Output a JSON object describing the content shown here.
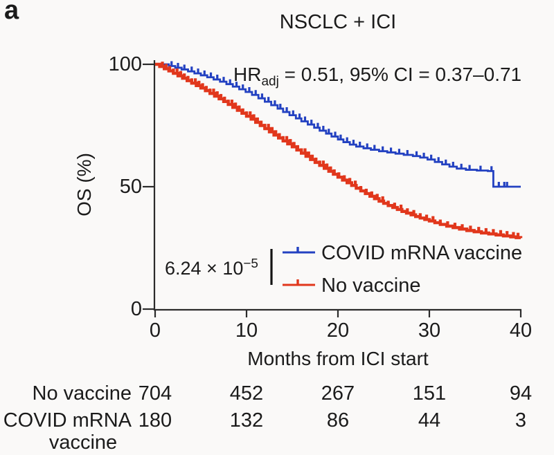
{
  "panel_label": "a",
  "annotations": {
    "hr_prefix": "HR",
    "hr_sub": "adj",
    "hr_rest": " = 0.51, 95% CI = 0.37–0.71",
    "pvalue_base": "6.24 × 10",
    "pvalue_sup": "−5"
  },
  "risk_table": {
    "rows": [
      {
        "label": "No vaccine",
        "counts": [
          "704",
          "452",
          "267",
          "151",
          "94"
        ]
      },
      {
        "label_line1": "COVID mRNA",
        "label_line2": "vaccine",
        "counts": [
          "180",
          "132",
          "86",
          "44",
          "3"
        ]
      }
    ]
  },
  "chart_data": {
    "type": "line",
    "subtype": "kaplan-meier-step",
    "title": "NSCLC + ICI",
    "xlabel": "Months from ICI start",
    "ylabel": "OS (%)",
    "xlim": [
      0,
      40
    ],
    "ylim": [
      0,
      100
    ],
    "grid": false,
    "legend_position": "inside lower-center",
    "x_ticks": [
      0,
      10,
      20,
      30,
      40
    ],
    "y_ticks": [
      100,
      50,
      0
    ],
    "x_tick_labels": [
      "0",
      "10",
      "20",
      "30",
      "40"
    ],
    "y_tick_labels": [
      "100",
      "50",
      "0"
    ],
    "hr_adjusted": 0.51,
    "ci_95": [
      0.37,
      0.71
    ],
    "p_value": 6.24e-05,
    "series": [
      {
        "name": "COVID mRNA vaccine",
        "color": "#2341c1",
        "line_width": 2.8,
        "censor_width": 3.2,
        "censor_height": 7,
        "steps": [
          [
            0,
            100
          ],
          [
            1.5,
            99.3
          ],
          [
            2.2,
            98.6
          ],
          [
            2.9,
            97.9
          ],
          [
            3.6,
            97.1
          ],
          [
            4.3,
            96.3
          ],
          [
            5,
            95.5
          ],
          [
            5.7,
            94.7
          ],
          [
            6.4,
            93.8
          ],
          [
            7.1,
            92.9
          ],
          [
            7.8,
            91.9
          ],
          [
            8.5,
            90.9
          ],
          [
            9.2,
            89.8
          ],
          [
            9.9,
            88.7
          ],
          [
            10.6,
            87.5
          ],
          [
            11.3,
            86.1
          ],
          [
            12,
            84.7
          ],
          [
            12.7,
            83.3
          ],
          [
            13.4,
            81.9
          ],
          [
            14,
            80.5
          ],
          [
            14.7,
            79.2
          ],
          [
            15.4,
            77.9
          ],
          [
            16,
            76.7
          ],
          [
            16.7,
            75.4
          ],
          [
            17.4,
            74.1
          ],
          [
            18,
            72.9
          ],
          [
            18.7,
            71.7
          ],
          [
            19.3,
            70.5
          ],
          [
            20,
            69.3
          ],
          [
            20.6,
            68.2
          ],
          [
            21.3,
            67.2
          ],
          [
            22,
            66.4
          ],
          [
            22.8,
            65.7
          ],
          [
            23.6,
            65.1
          ],
          [
            24.5,
            64.5
          ],
          [
            25.4,
            64
          ],
          [
            26.3,
            63.5
          ],
          [
            27.2,
            63
          ],
          [
            28.2,
            62.5
          ],
          [
            29,
            61.9
          ],
          [
            29.8,
            61.1
          ],
          [
            30.6,
            60.1
          ],
          [
            31.4,
            59.1
          ],
          [
            32.2,
            58.2
          ],
          [
            33,
            57.4
          ],
          [
            34,
            56.9
          ],
          [
            35.2,
            56.6
          ],
          [
            36.4,
            56.4
          ],
          [
            37,
            50
          ],
          [
            40,
            50
          ]
        ],
        "censor_times": [
          1.8,
          2.5,
          3.2,
          4,
          4.7,
          5.4,
          6.1,
          6.8,
          7.5,
          8.2,
          8.9,
          9.6,
          10.3,
          11,
          11.7,
          12.4,
          13.1,
          13.7,
          14.4,
          15.1,
          15.8,
          16.4,
          17.1,
          17.8,
          18.4,
          19,
          19.7,
          20.3,
          21,
          21.7,
          22.4,
          23.2,
          24,
          24.9,
          25.8,
          26.7,
          27.6,
          28.6,
          29.4,
          30.2,
          31,
          31.8,
          32.6,
          33.5,
          34.4,
          35.6,
          36.8,
          37.6,
          38.2,
          38.5
        ],
        "at_risk": [
          180,
          132,
          86,
          44,
          3
        ]
      },
      {
        "name": "No vaccine",
        "color": "#e1371c",
        "line_width": 4.4,
        "censor_width": 4.2,
        "censor_height": 7,
        "steps": [
          [
            0,
            100
          ],
          [
            0.5,
            99.1
          ],
          [
            1,
            98.2
          ],
          [
            1.5,
            97.3
          ],
          [
            2,
            96.3
          ],
          [
            2.5,
            95.3
          ],
          [
            3,
            94.3
          ],
          [
            3.5,
            93.3
          ],
          [
            4,
            92.3
          ],
          [
            4.5,
            91.3
          ],
          [
            5,
            90.3
          ],
          [
            5.5,
            89.2
          ],
          [
            6,
            88.1
          ],
          [
            6.5,
            87
          ],
          [
            7,
            85.9
          ],
          [
            7.5,
            84.8
          ],
          [
            8,
            83.6
          ],
          [
            8.5,
            82.4
          ],
          [
            9,
            81.2
          ],
          [
            9.5,
            80
          ],
          [
            10,
            78.8
          ],
          [
            10.5,
            77.6
          ],
          [
            11,
            76.3
          ],
          [
            11.5,
            75
          ],
          [
            12,
            73.7
          ],
          [
            12.5,
            72.4
          ],
          [
            13,
            71.1
          ],
          [
            13.5,
            69.9
          ],
          [
            14,
            68.7
          ],
          [
            14.5,
            67.5
          ],
          [
            15,
            66.3
          ],
          [
            15.5,
            65
          ],
          [
            16,
            63.7
          ],
          [
            16.5,
            62.4
          ],
          [
            17,
            61.1
          ],
          [
            17.5,
            59.9
          ],
          [
            18,
            58.7
          ],
          [
            18.5,
            57.5
          ],
          [
            19,
            56.3
          ],
          [
            19.5,
            55.1
          ],
          [
            20,
            53.9
          ],
          [
            20.5,
            52.7
          ],
          [
            21,
            51.6
          ],
          [
            21.5,
            50.5
          ],
          [
            22,
            49.4
          ],
          [
            22.5,
            48.3
          ],
          [
            23,
            47.2
          ],
          [
            23.5,
            46.1
          ],
          [
            24,
            45.1
          ],
          [
            24.5,
            44.1
          ],
          [
            25,
            43.2
          ],
          [
            25.5,
            42.3
          ],
          [
            26,
            41.5
          ],
          [
            26.5,
            40.7
          ],
          [
            27,
            39.9
          ],
          [
            27.5,
            39.2
          ],
          [
            28,
            38.5
          ],
          [
            28.5,
            37.8
          ],
          [
            29,
            37.2
          ],
          [
            29.5,
            36.6
          ],
          [
            30,
            36
          ],
          [
            30.6,
            35.3
          ],
          [
            31.2,
            34.6
          ],
          [
            31.9,
            33.9
          ],
          [
            32.6,
            33.3
          ],
          [
            33.3,
            32.7
          ],
          [
            34.1,
            32.1
          ],
          [
            34.9,
            31.6
          ],
          [
            35.7,
            31.1
          ],
          [
            36.5,
            30.7
          ],
          [
            37.3,
            30.3
          ],
          [
            38.1,
            29.9
          ],
          [
            38.9,
            29.5
          ],
          [
            39.5,
            29.2
          ],
          [
            40,
            29
          ]
        ],
        "censor_times": [
          0.8,
          1.2,
          1.6,
          2,
          2.4,
          2.8,
          3.2,
          3.6,
          4,
          4.4,
          4.8,
          5.2,
          5.6,
          6,
          6.4,
          6.8,
          7.2,
          7.6,
          8,
          8.4,
          8.8,
          9.2,
          9.6,
          10,
          10.4,
          10.8,
          11.2,
          11.6,
          12,
          12.4,
          12.8,
          13.2,
          13.6,
          14,
          14.4,
          14.8,
          15.2,
          15.6,
          16,
          16.4,
          16.8,
          17.2,
          17.6,
          18,
          18.4,
          18.8,
          19.2,
          19.6,
          20.1,
          20.7,
          21.3,
          21.9,
          22.5,
          23.1,
          23.7,
          24.3,
          24.9,
          25.5,
          26.2,
          26.9,
          27.6,
          28.3,
          29,
          29.7,
          30.4,
          31.2,
          32,
          32.8,
          33.6,
          34.5,
          35.4,
          36.2,
          37,
          37.8,
          38.5,
          39.2,
          39.7
        ],
        "at_risk": [
          704,
          452,
          267,
          151,
          94
        ]
      }
    ]
  }
}
